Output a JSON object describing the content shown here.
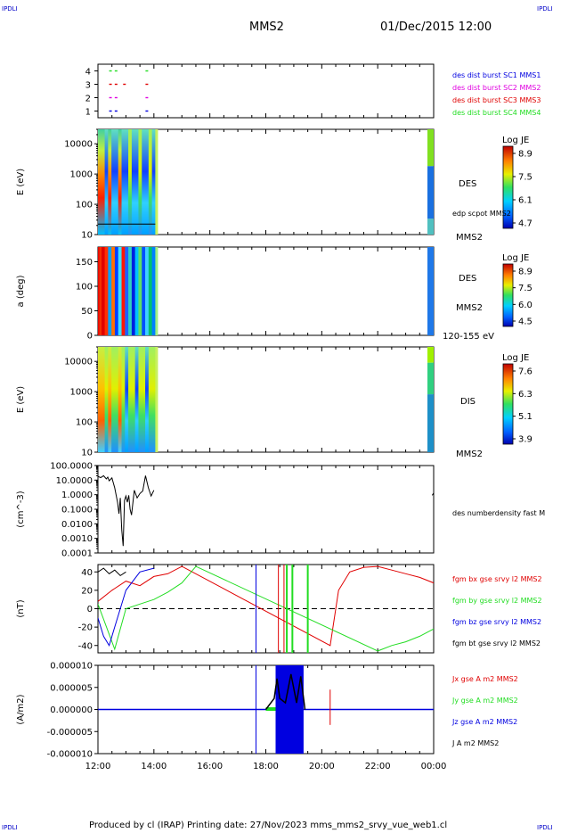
{
  "header": {
    "corner_left": "IPDLI",
    "corner_right": "IPDLI",
    "title": "MMS2",
    "date": "01/Dec/2015 12:00",
    "footer": "Produced by cl (IRAP)   Printing date: 27/Nov/2023   mms_mms2_srvy_vue_web1.cl",
    "bottom_left": "IPDLI",
    "bottom_right": "IPDLI"
  },
  "colors": {
    "black": "#000000",
    "red": "#e00000",
    "green": "#22dd22",
    "blue": "#0000e0",
    "magenta": "#e000e0",
    "axis": "#000000"
  },
  "chart_data": [
    {
      "type": "scatter",
      "id": "burst",
      "yticks": [
        "1",
        "2",
        "3",
        "4"
      ],
      "ylim": [
        0.5,
        4.5
      ],
      "legend": [
        {
          "label": "des dist burst SC1 MMS1",
          "color": "#0000e0"
        },
        {
          "label": "des dist burst SC2 MMS2",
          "color": "#e000e0"
        },
        {
          "label": "des dist burst SC3 MMS3",
          "color": "#e00000"
        },
        {
          "label": "des dist burst SC4 MMS4",
          "color": "#22dd22"
        }
      ],
      "series": [
        {
          "level": 4,
          "color": "#22dd22",
          "x": [
            12.4,
            12.6,
            13.7
          ]
        },
        {
          "level": 3,
          "color": "#e00000",
          "x": [
            12.4,
            12.6,
            12.9,
            13.7
          ]
        },
        {
          "level": 2,
          "color": "#e000e0",
          "x": [
            12.4,
            12.6,
            13.7
          ]
        },
        {
          "level": 1,
          "color": "#0000e0",
          "x": [
            12.4,
            12.6,
            13.7
          ]
        }
      ]
    },
    {
      "type": "heatmap",
      "id": "des_energy",
      "ylabel": "E (eV)",
      "yticks": [
        "10",
        "100",
        "1000",
        "10000"
      ],
      "ylim": [
        10,
        30000
      ],
      "colorbar": {
        "title": "Log JE",
        "ticks": [
          "8.9",
          "7.5",
          "6.1",
          "4.7"
        ]
      },
      "labels": [
        "DES",
        "edp scpot MMS2",
        "MMS2"
      ]
    },
    {
      "type": "heatmap",
      "id": "des_pitch",
      "ylabel": "a (deg)",
      "yticks": [
        "0",
        "50",
        "100",
        "150"
      ],
      "ylim": [
        0,
        180
      ],
      "colorbar": {
        "title": "Log JE",
        "ticks": [
          "8.9",
          "7.5",
          "6.0",
          "4.5"
        ]
      },
      "labels": [
        "DES",
        "MMS2",
        "120-155 eV"
      ]
    },
    {
      "type": "heatmap",
      "id": "dis_energy",
      "ylabel": "E (eV)",
      "yticks": [
        "10",
        "100",
        "1000",
        "10000"
      ],
      "ylim": [
        10,
        30000
      ],
      "colorbar": {
        "title": "Log JE",
        "ticks": [
          "7.6",
          "6.3",
          "5.1",
          "3.9"
        ]
      },
      "labels": [
        "DIS",
        "MMS2"
      ]
    },
    {
      "type": "line",
      "id": "density",
      "ylabel": "(cm^-3)",
      "yticks": [
        "100.0000",
        "10.0000",
        "1.0000",
        "0.1000",
        "0.0100",
        "0.0010",
        "0.0001"
      ],
      "ylim": [
        0.0001,
        100
      ],
      "yscale": "log",
      "series": [
        {
          "name": "des numberdensity fast M",
          "color": "#000000",
          "x": [
            12.0,
            12.1,
            12.2,
            12.3,
            12.35,
            12.4,
            12.5,
            12.6,
            12.7,
            12.75,
            12.8,
            12.85,
            12.9,
            12.95,
            13.0,
            13.05,
            13.1,
            13.15,
            13.2,
            13.25,
            13.3,
            13.4,
            13.5,
            13.6,
            13.7,
            13.8,
            13.9,
            14.0
          ],
          "y": [
            18,
            15,
            20,
            12,
            16,
            9,
            14,
            3,
            0.3,
            0.05,
            0.6,
            0.004,
            0.0003,
            0.4,
            0.8,
            0.3,
            0.9,
            0.1,
            0.04,
            0.3,
            2,
            0.6,
            1.2,
            1.8,
            20,
            3,
            0.8,
            2
          ]
        },
        {
          "name": "",
          "color": "#000000",
          "x": [
            24.0,
            23.95
          ],
          "y": [
            1.3,
            0.9
          ]
        }
      ]
    },
    {
      "type": "line",
      "id": "fgm",
      "ylabel": "(nT)",
      "yticks": [
        "40",
        "20",
        "0",
        "-20",
        "-40"
      ],
      "ylim": [
        -48,
        48
      ],
      "legend": [
        {
          "label": "fgm bx gse srvy l2 MMS2",
          "color": "#e00000"
        },
        {
          "label": "fgm by gse srvy l2 MMS2",
          "color": "#22dd22"
        },
        {
          "label": "fgm bz gse srvy l2 MMS2",
          "color": "#0000e0"
        },
        {
          "label": "fgm bt gse srvy l2 MMS2",
          "color": "#000000"
        }
      ],
      "series": [
        {
          "name": "bt",
          "color": "#000000",
          "x": [
            12.0,
            12.2,
            12.4,
            12.6,
            12.8,
            13.0
          ],
          "y": [
            40,
            44,
            38,
            42,
            36,
            40
          ]
        },
        {
          "name": "bx",
          "color": "#e00000",
          "x": [
            12.0,
            12.5,
            13.0,
            13.5,
            14.0,
            14.5,
            15.0,
            20.3,
            20.6,
            21.0,
            21.5,
            22.0,
            22.5,
            23.0,
            23.5,
            24.0
          ],
          "y": [
            8,
            20,
            30,
            25,
            35,
            38,
            46,
            -40,
            20,
            40,
            45,
            46,
            42,
            38,
            34,
            28
          ]
        },
        {
          "name": "by",
          "color": "#22dd22",
          "x": [
            12.0,
            12.6,
            13.0,
            13.5,
            14.0,
            14.5,
            15.0,
            15.5,
            22.0,
            22.5,
            23.0,
            23.5,
            24.0
          ],
          "y": [
            5,
            -44,
            0,
            5,
            10,
            18,
            28,
            46,
            -46,
            -40,
            -36,
            -30,
            -22
          ]
        },
        {
          "name": "bz",
          "color": "#0000e0",
          "x": [
            12.0,
            12.2,
            12.4,
            12.6,
            12.8,
            13.0,
            13.5,
            14.0
          ],
          "y": [
            -10,
            -30,
            -40,
            -20,
            0,
            20,
            40,
            44
          ]
        }
      ]
    },
    {
      "type": "line",
      "id": "current",
      "ylabel": "(A/m2)",
      "yticks": [
        "0.000010",
        "0.000005",
        "0.000000",
        "-0.000005",
        "-0.000010"
      ],
      "ylim": [
        -1e-05,
        1e-05
      ],
      "xlabel": "",
      "xticks": [
        "12:00",
        "14:00",
        "16:00",
        "18:00",
        "20:00",
        "22:00",
        "00:00"
      ],
      "legend": [
        {
          "label": "Jx gse A m2 MMS2",
          "color": "#e00000"
        },
        {
          "label": "Jy gse A m2 MMS2",
          "color": "#22dd22"
        },
        {
          "label": "Jz gse A m2 MMS2",
          "color": "#0000e0"
        },
        {
          "label": "J A m2 MMS2",
          "color": "#000000"
        }
      ]
    }
  ]
}
